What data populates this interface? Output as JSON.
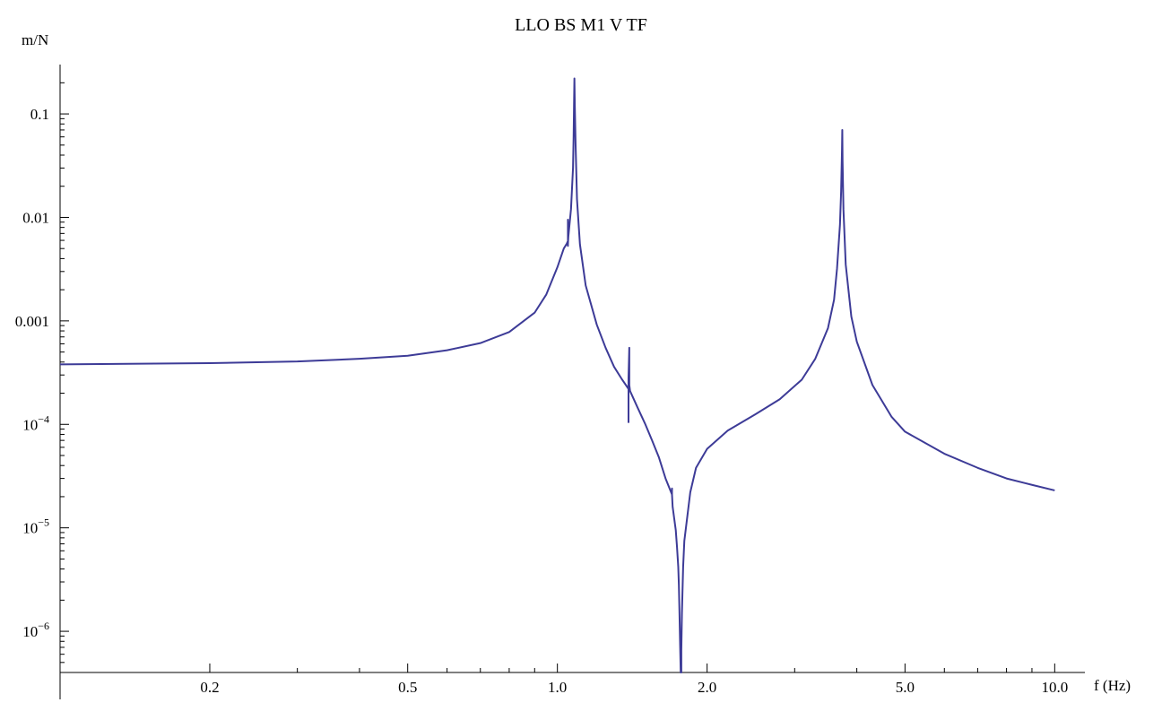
{
  "chart_data": {
    "type": "line",
    "title": "LLO BS M1 V TF",
    "xlabel": "f (Hz)",
    "ylabel": "m/N",
    "x_scale": "log",
    "y_scale": "log",
    "xlim": [
      0.1,
      11.5
    ],
    "ylim": [
      4e-07,
      0.3
    ],
    "grid": false,
    "color": "#3d3b97",
    "x_ticks": [
      {
        "value": 0.2,
        "label": "0.2"
      },
      {
        "value": 0.5,
        "label": "0.5"
      },
      {
        "value": 1.0,
        "label": "1.0"
      },
      {
        "value": 2.0,
        "label": "2.0"
      },
      {
        "value": 5.0,
        "label": "5.0"
      },
      {
        "value": 10.0,
        "label": "10.0"
      }
    ],
    "x_minor_ticks": [
      0.3,
      0.4,
      0.6,
      0.7,
      0.8,
      0.9,
      3,
      4,
      6,
      7,
      8,
      9
    ],
    "y_ticks": [
      {
        "value": 0.1,
        "label": "0.1"
      },
      {
        "value": 0.01,
        "label": "0.01"
      },
      {
        "value": 0.001,
        "label": "0.001"
      },
      {
        "value": 0.0001,
        "base": "10",
        "exp": "−4"
      },
      {
        "value": 1e-05,
        "base": "10",
        "exp": "−5"
      },
      {
        "value": 1e-06,
        "base": "10",
        "exp": "−6"
      }
    ],
    "series": [
      {
        "x": [
          0.1,
          0.2,
          0.3,
          0.4,
          0.5,
          0.6,
          0.7,
          0.8,
          0.9,
          0.95,
          1.0,
          1.03,
          1.045,
          1.048,
          1.05,
          1.05,
          1.05,
          1.052,
          1.055,
          1.065,
          1.075,
          1.078,
          1.08,
          1.082,
          1.084,
          1.088,
          1.095,
          1.11,
          1.14,
          1.2,
          1.25,
          1.3,
          1.35,
          1.39,
          1.39,
          1.39,
          1.395,
          1.395,
          1.395,
          1.4,
          1.45,
          1.5,
          1.55,
          1.6,
          1.65,
          1.7,
          1.7,
          1.7,
          1.705,
          1.73,
          1.74,
          1.75,
          1.755,
          1.76,
          1.765,
          1.77,
          1.775,
          1.775,
          1.78,
          1.79,
          1.8,
          1.85,
          1.9,
          2.0,
          2.2,
          2.5,
          2.8,
          3.1,
          3.3,
          3.5,
          3.6,
          3.65,
          3.7,
          3.72,
          3.735,
          3.74,
          3.745,
          3.76,
          3.8,
          3.9,
          4.0,
          4.3,
          4.7,
          5.0,
          6.0,
          7.0,
          8.0,
          9.0,
          10.0
        ],
        "y": [
          0.00038,
          0.00039,
          0.000405,
          0.00043,
          0.00046,
          0.00052,
          0.00061,
          0.00078,
          0.0012,
          0.0018,
          0.0033,
          0.005,
          0.0056,
          0.0058,
          0.0053,
          0.0095,
          0.0055,
          0.0065,
          0.0075,
          0.012,
          0.03,
          0.06,
          0.12,
          0.22,
          0.12,
          0.05,
          0.015,
          0.0055,
          0.0022,
          0.00092,
          0.00055,
          0.00036,
          0.00027,
          0.00022,
          0.000105,
          0.00028,
          0.00055,
          0.00033,
          0.00024,
          0.00021,
          0.000145,
          0.000102,
          7e-05,
          4.8e-05,
          3e-05,
          2.1e-05,
          2.4e-05,
          2.1e-05,
          1.6e-05,
          9.5e-06,
          6.5e-06,
          4.2e-06,
          2.8e-06,
          1.5e-06,
          7.5e-07,
          3e-07,
          3e-07,
          6.5e-07,
          1.5e-06,
          4.2e-06,
          7.5e-06,
          2.2e-05,
          3.8e-05,
          5.8e-05,
          8.7e-05,
          0.000125,
          0.000175,
          0.00027,
          0.00043,
          0.00085,
          0.0016,
          0.0032,
          0.0085,
          0.018,
          0.045,
          0.07,
          0.035,
          0.012,
          0.0035,
          0.0011,
          0.00063,
          0.00024,
          0.000118,
          8.5e-05,
          5.2e-05,
          3.8e-05,
          3e-05,
          2.6e-05,
          2.3e-05
        ]
      }
    ]
  }
}
